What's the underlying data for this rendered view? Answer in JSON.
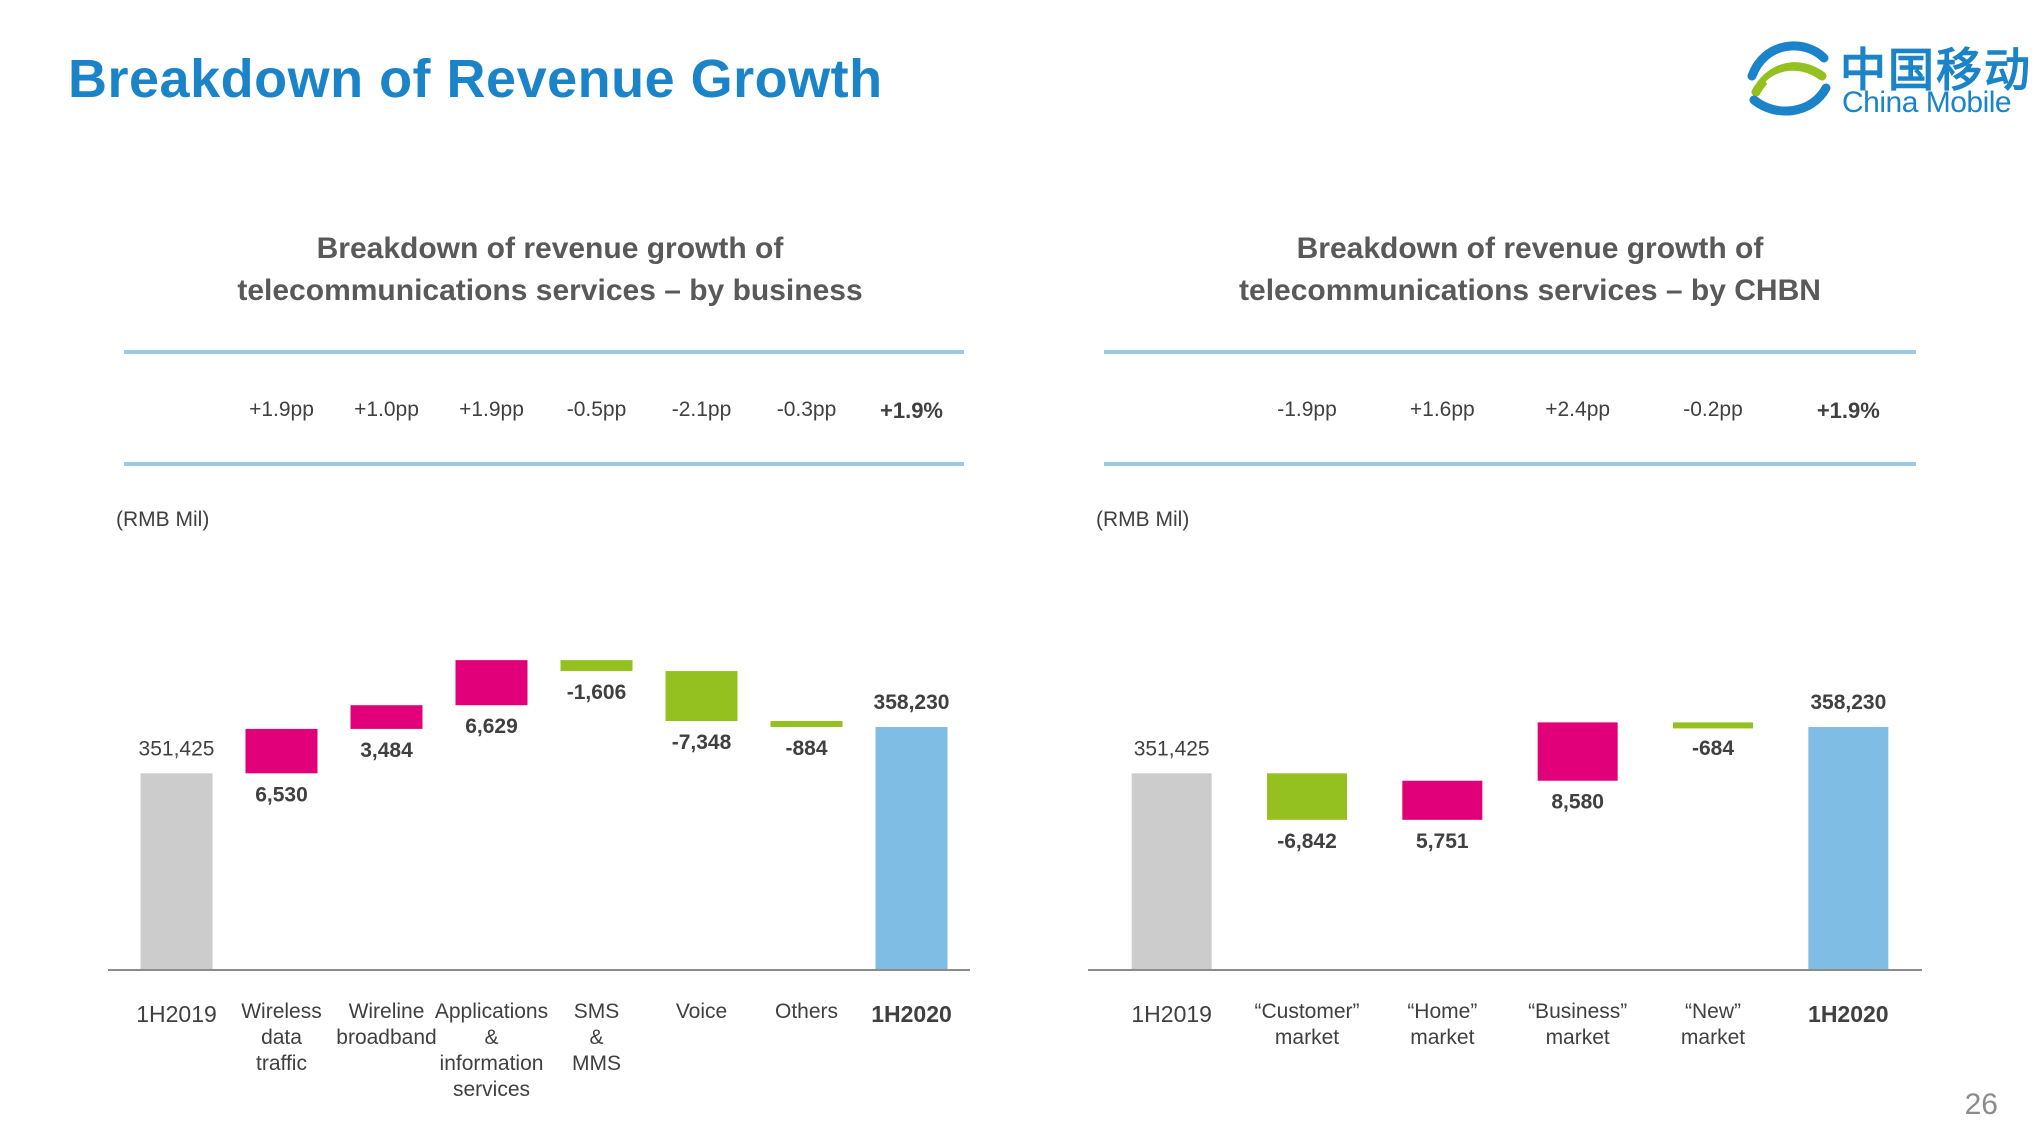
{
  "slide": {
    "title": "Breakdown of Revenue Growth",
    "page_number": "26",
    "logo": {
      "chinese": "中国移动",
      "english": "China Mobile"
    }
  },
  "colors": {
    "title_blue": "#1b83c8",
    "base_bar": "#cccccc",
    "total_bar": "#7fbde4",
    "increase": "#e2007a",
    "decrease": "#94c11f",
    "band_line": "#9dc8e6"
  },
  "chart_data": [
    {
      "type": "bar",
      "subtype": "waterfall",
      "title": "Breakdown of revenue growth of\ntelecommunications services – by business",
      "unit_label": "(RMB Mil)",
      "categories": [
        "1H2019",
        "Wireless\ndata\ntraffic",
        "Wireline\nbroadband",
        "Applications\n&\ninformation\nservices",
        "SMS\n&\nMMS",
        "Voice",
        "Others",
        "1H2020"
      ],
      "values": [
        351425,
        6530,
        3484,
        6629,
        -1606,
        -7348,
        -884,
        358230
      ],
      "value_labels": [
        "351,425",
        "6,530",
        "3,484",
        "6,629",
        "-1,606",
        "-7,348",
        "-884",
        "358,230"
      ],
      "growth_pp": [
        "+1.9pp",
        "+1.0pp",
        "+1.9pp",
        "-0.5pp",
        "-2.1pp",
        "-0.3pp",
        "+1.9%"
      ],
      "kinds": [
        "base",
        "change",
        "change",
        "change",
        "change",
        "change",
        "change",
        "total"
      ]
    },
    {
      "type": "bar",
      "subtype": "waterfall",
      "title": "Breakdown of revenue growth of\ntelecommunications services – by CHBN",
      "unit_label": "(RMB Mil)",
      "categories": [
        "1H2019",
        "“Customer”\nmarket",
        "“Home”\nmarket",
        "“Business”\nmarket",
        "“New”\nmarket",
        "1H2020"
      ],
      "values": [
        351425,
        -6842,
        5751,
        8580,
        -684,
        358230
      ],
      "value_labels": [
        "351,425",
        "-6,842",
        "5,751",
        "8,580",
        "-684",
        "358,230"
      ],
      "growth_pp": [
        "-1.9pp",
        "+1.6pp",
        "+2.4pp",
        "-0.2pp",
        "+1.9%"
      ],
      "kinds": [
        "base",
        "change",
        "change",
        "change",
        "change",
        "total"
      ]
    }
  ]
}
